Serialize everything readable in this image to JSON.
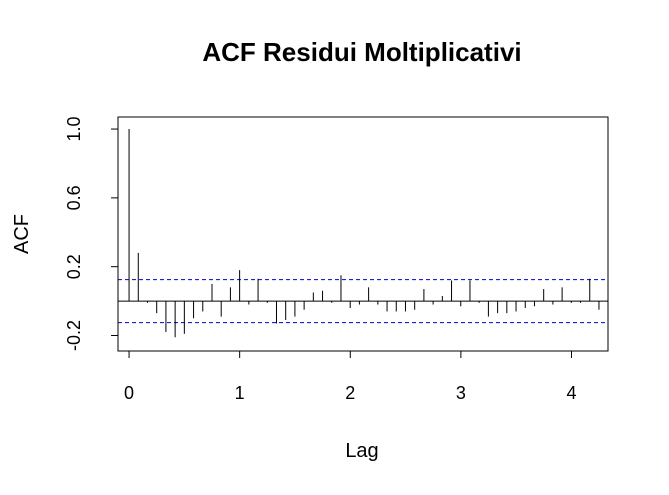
{
  "chart_data": {
    "type": "bar",
    "title": "ACF Residui Moltiplicativi",
    "xlabel": "Lag",
    "ylabel": "ACF",
    "xlim": [
      -0.1,
      4.33
    ],
    "ylim": [
      -0.29,
      1.07
    ],
    "x_ticks": [
      0,
      1,
      2,
      3,
      4
    ],
    "x_tick_labels": [
      "0",
      "1",
      "2",
      "3",
      "4"
    ],
    "y_ticks": [
      -0.2,
      0.2,
      0.6,
      1.0
    ],
    "y_tick_labels": [
      "-0.2",
      "0.2",
      "0.6",
      "1.0"
    ],
    "confidence_bounds": [
      0.125,
      -0.125
    ],
    "bound_color": "#0000cc",
    "bar_color": "#000000",
    "lag_step": 0.0833,
    "values": [
      1.0,
      0.28,
      -0.01,
      -0.07,
      -0.18,
      -0.21,
      -0.19,
      -0.1,
      -0.06,
      0.1,
      -0.09,
      0.08,
      0.18,
      -0.02,
      0.13,
      -0.01,
      -0.13,
      -0.11,
      -0.09,
      -0.05,
      0.05,
      0.06,
      -0.01,
      0.15,
      -0.04,
      -0.02,
      0.08,
      -0.02,
      -0.06,
      -0.06,
      -0.06,
      -0.05,
      0.07,
      -0.02,
      0.03,
      0.12,
      -0.03,
      0.12,
      -0.01,
      -0.09,
      -0.07,
      -0.07,
      -0.06,
      -0.04,
      -0.03,
      0.07,
      -0.02,
      0.08,
      -0.01,
      -0.01,
      0.13,
      -0.05
    ]
  }
}
